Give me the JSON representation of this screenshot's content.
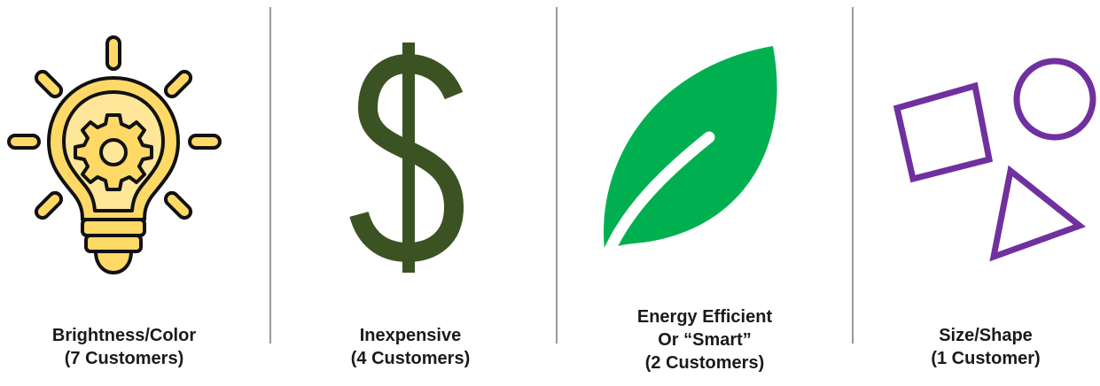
{
  "items": [
    {
      "lines": [
        "Brightness/Color",
        "(7 Customers)"
      ]
    },
    {
      "lines": [
        "Inexpensive",
        "(4 Customers)"
      ]
    },
    {
      "lines": [
        "Energy Efficient",
        "Or “Smart”",
        "(2 Customers)"
      ]
    },
    {
      "lines": [
        "Size/Shape",
        "(1 Customer)"
      ]
    }
  ]
}
